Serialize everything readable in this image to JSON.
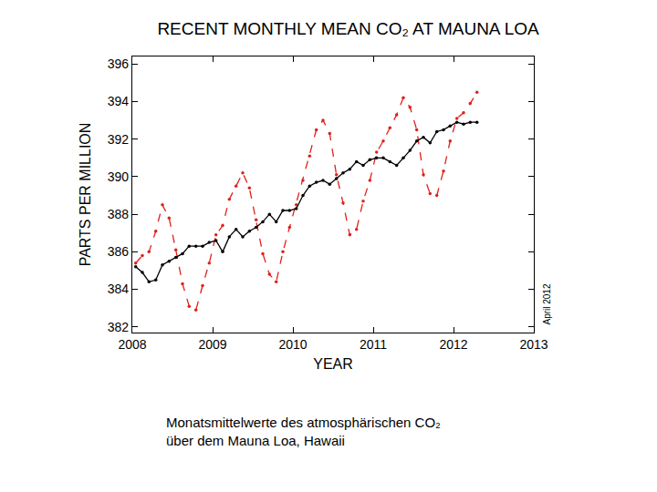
{
  "chart_data": {
    "type": "line",
    "title": "RECENT MONTHLY MEAN CO₂ AT MAUNA LOA",
    "x_label": "YEAR",
    "y_label": "PARTS PER MILLION",
    "caption": [
      "Monatsmittelwerte des atmosphärischen CO₂",
      "über dem Mauna Loa, Hawaii"
    ],
    "annotations": [
      {
        "text": "April 2012"
      }
    ],
    "x": [
      2008.042,
      2008.125,
      2008.208,
      2008.292,
      2008.375,
      2008.458,
      2008.542,
      2008.625,
      2008.708,
      2008.792,
      2008.875,
      2008.958,
      2009.042,
      2009.125,
      2009.208,
      2009.292,
      2009.375,
      2009.458,
      2009.542,
      2009.625,
      2009.708,
      2009.792,
      2009.875,
      2009.958,
      2010.042,
      2010.125,
      2010.208,
      2010.292,
      2010.375,
      2010.458,
      2010.542,
      2010.625,
      2010.708,
      2010.792,
      2010.875,
      2010.958,
      2011.042,
      2011.125,
      2011.208,
      2011.292,
      2011.375,
      2011.458,
      2011.542,
      2011.625,
      2011.708,
      2011.792,
      2011.875,
      2011.958,
      2012.042,
      2012.125,
      2012.208,
      2012.292
    ],
    "series": [
      {
        "color": "#e0201b",
        "line_style": "dash",
        "marker": "circle",
        "values": [
          385.4,
          385.8,
          386.0,
          387.1,
          388.5,
          387.8,
          386.1,
          384.3,
          383.1,
          382.9,
          384.2,
          385.4,
          386.9,
          387.4,
          388.8,
          389.5,
          390.2,
          389.4,
          387.7,
          385.9,
          384.8,
          384.4,
          386.0,
          387.3,
          388.5,
          389.8,
          391.1,
          392.5,
          393.0,
          392.3,
          390.1,
          388.6,
          386.9,
          387.2,
          388.7,
          389.8,
          391.3,
          391.9,
          392.6,
          393.3,
          394.2,
          393.7,
          392.5,
          390.1,
          389.1,
          389.0,
          390.3,
          391.9,
          393.1,
          393.4,
          393.9,
          394.5
        ]
      },
      {
        "color": "#000000",
        "line_style": "solid",
        "marker": "circle",
        "values": [
          385.2,
          384.9,
          384.4,
          384.5,
          385.3,
          385.5,
          385.7,
          385.9,
          386.3,
          386.3,
          386.3,
          386.5,
          386.6,
          386.0,
          386.8,
          387.2,
          386.8,
          387.1,
          387.3,
          387.6,
          388.0,
          387.6,
          388.2,
          388.2,
          388.3,
          389.0,
          389.5,
          389.7,
          389.8,
          389.6,
          389.9,
          390.2,
          390.4,
          390.8,
          390.6,
          390.9,
          391.0,
          391.0,
          390.8,
          390.6,
          391.0,
          391.4,
          391.9,
          392.1,
          391.8,
          392.4,
          392.5,
          392.7,
          392.9,
          392.8,
          392.9,
          392.9
        ]
      }
    ],
    "xlim": [
      2008,
      2013
    ],
    "xticks": [
      2008,
      2009,
      2010,
      2011,
      2012,
      2013
    ],
    "ylim": [
      381.7,
      396.4
    ],
    "yticks": [
      382,
      384,
      386,
      388,
      390,
      392,
      394,
      396
    ],
    "grid": false
  }
}
